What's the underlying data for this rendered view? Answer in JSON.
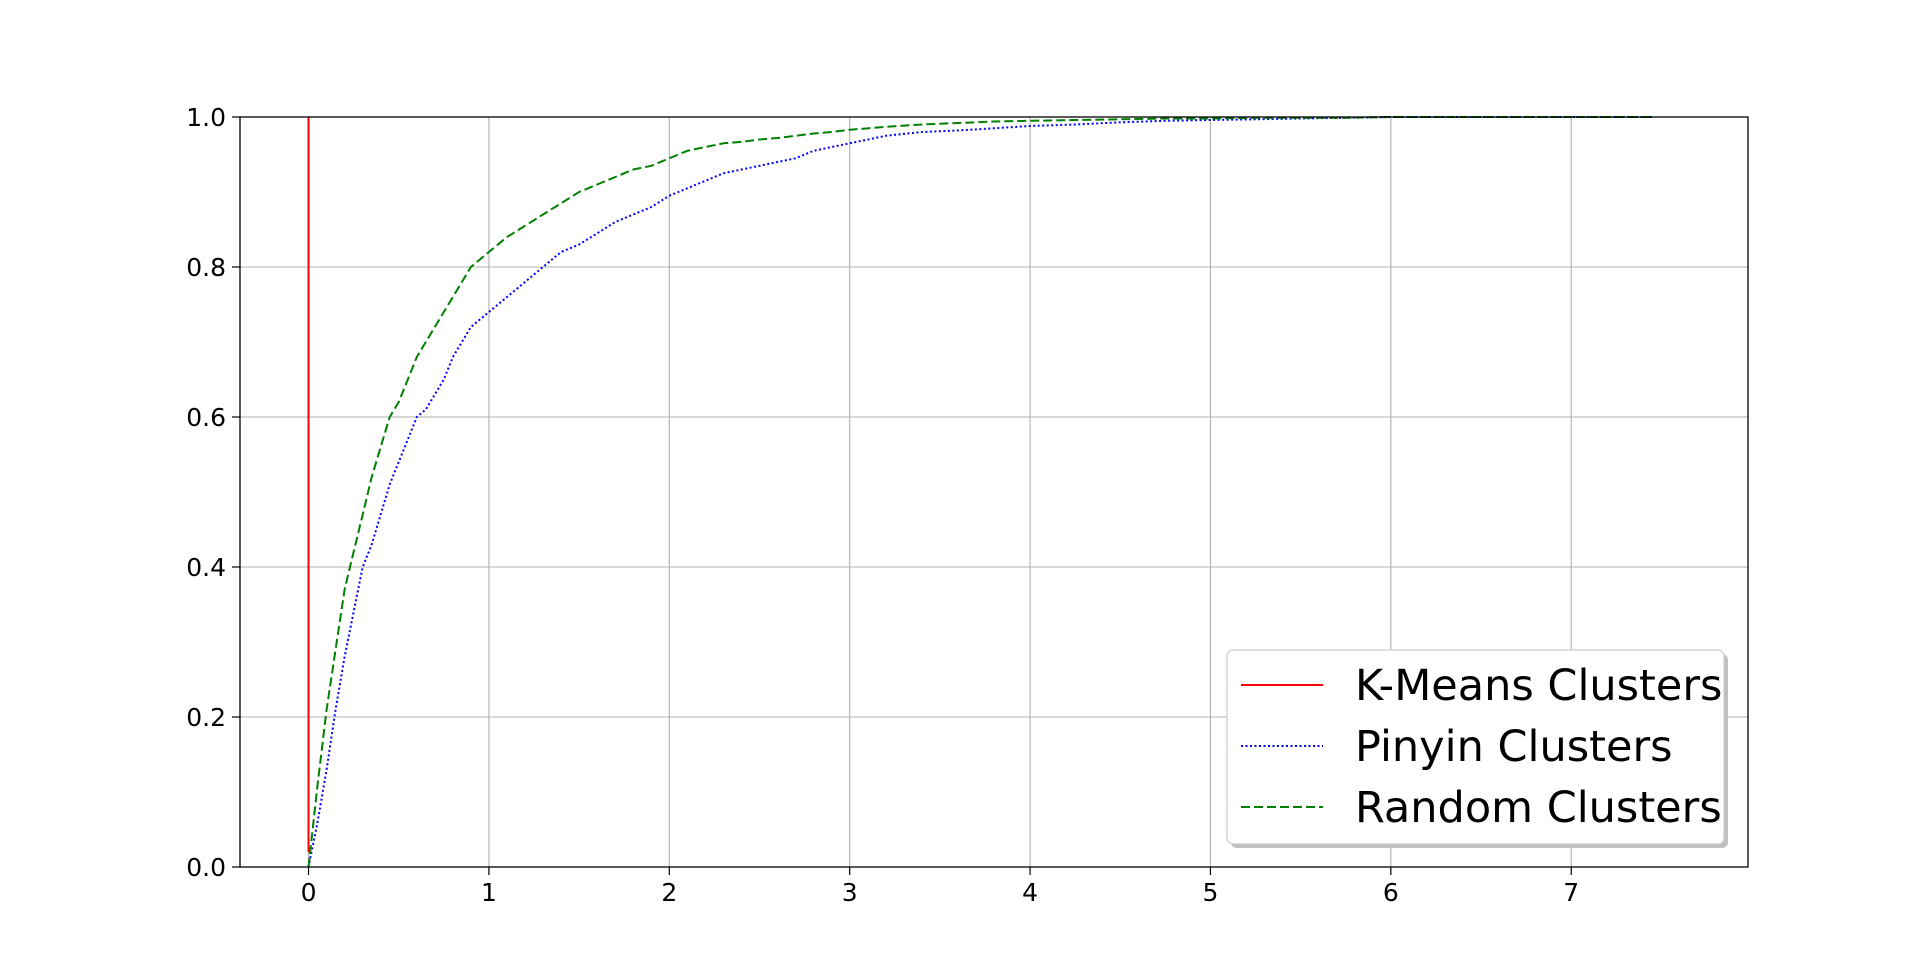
{
  "chart_data": {
    "type": "line",
    "title": "",
    "xlabel": "",
    "ylabel": "",
    "xlim": [
      -0.38,
      7.98
    ],
    "ylim": [
      0.0,
      1.0
    ],
    "xticks": [
      "0",
      "1",
      "2",
      "3",
      "4",
      "5",
      "6",
      "7"
    ],
    "yticks": [
      "0.0",
      "0.2",
      "0.4",
      "0.6",
      "0.8",
      "1.0"
    ],
    "grid": true,
    "legend_position": "lower right",
    "series": [
      {
        "name": "K-Means Clusters",
        "color": "#ff0000",
        "style": "solid",
        "x": [
          0.0,
          0.0,
          0.0,
          0.0
        ],
        "y": [
          0.02,
          0.5,
          0.9,
          1.0
        ]
      },
      {
        "name": "Pinyin Clusters",
        "color": "#0000ff",
        "style": "dotted",
        "x": [
          0.0,
          0.05,
          0.1,
          0.15,
          0.2,
          0.25,
          0.3,
          0.35,
          0.4,
          0.45,
          0.5,
          0.55,
          0.6,
          0.65,
          0.7,
          0.75,
          0.8,
          0.85,
          0.9,
          0.95,
          1.0,
          1.1,
          1.2,
          1.3,
          1.4,
          1.5,
          1.6,
          1.7,
          1.8,
          1.9,
          2.0,
          2.1,
          2.2,
          2.3,
          2.4,
          2.5,
          2.6,
          2.7,
          2.8,
          2.9,
          3.0,
          3.2,
          3.4,
          3.6,
          3.8,
          4.0,
          4.25,
          4.5,
          4.75,
          5.0,
          5.25,
          5.5,
          5.75,
          6.0,
          6.5,
          7.0,
          7.45
        ],
        "y": [
          0.0,
          0.06,
          0.13,
          0.21,
          0.28,
          0.34,
          0.4,
          0.43,
          0.47,
          0.51,
          0.54,
          0.57,
          0.6,
          0.61,
          0.63,
          0.65,
          0.68,
          0.7,
          0.72,
          0.73,
          0.74,
          0.76,
          0.78,
          0.8,
          0.82,
          0.83,
          0.845,
          0.86,
          0.87,
          0.88,
          0.895,
          0.905,
          0.915,
          0.925,
          0.93,
          0.935,
          0.94,
          0.945,
          0.955,
          0.96,
          0.965,
          0.975,
          0.98,
          0.982,
          0.985,
          0.988,
          0.99,
          0.993,
          0.995,
          0.996,
          0.997,
          0.998,
          0.999,
          1.0,
          1.0,
          1.0,
          1.0
        ]
      },
      {
        "name": "Random Clusters",
        "color": "#008000",
        "style": "dashed",
        "x": [
          0.0,
          0.05,
          0.1,
          0.15,
          0.2,
          0.25,
          0.3,
          0.35,
          0.4,
          0.45,
          0.5,
          0.55,
          0.6,
          0.65,
          0.7,
          0.75,
          0.8,
          0.85,
          0.9,
          0.95,
          1.0,
          1.1,
          1.2,
          1.3,
          1.4,
          1.5,
          1.6,
          1.7,
          1.8,
          1.9,
          2.0,
          2.1,
          2.2,
          2.3,
          2.4,
          2.5,
          2.6,
          2.7,
          2.8,
          2.9,
          3.0,
          3.2,
          3.4,
          3.6,
          3.8,
          4.0,
          4.25,
          4.5,
          4.75,
          5.0,
          5.25,
          5.5,
          5.75,
          6.0,
          6.5,
          7.0,
          7.45
        ],
        "y": [
          0.0,
          0.11,
          0.21,
          0.29,
          0.37,
          0.42,
          0.47,
          0.52,
          0.56,
          0.6,
          0.62,
          0.65,
          0.68,
          0.7,
          0.72,
          0.74,
          0.76,
          0.78,
          0.8,
          0.81,
          0.82,
          0.84,
          0.855,
          0.87,
          0.885,
          0.9,
          0.91,
          0.92,
          0.93,
          0.935,
          0.945,
          0.955,
          0.96,
          0.965,
          0.967,
          0.97,
          0.972,
          0.975,
          0.978,
          0.98,
          0.983,
          0.987,
          0.99,
          0.992,
          0.994,
          0.995,
          0.996,
          0.997,
          0.998,
          0.998,
          0.999,
          0.999,
          0.999,
          1.0,
          1.0,
          1.0,
          1.0
        ]
      }
    ]
  }
}
